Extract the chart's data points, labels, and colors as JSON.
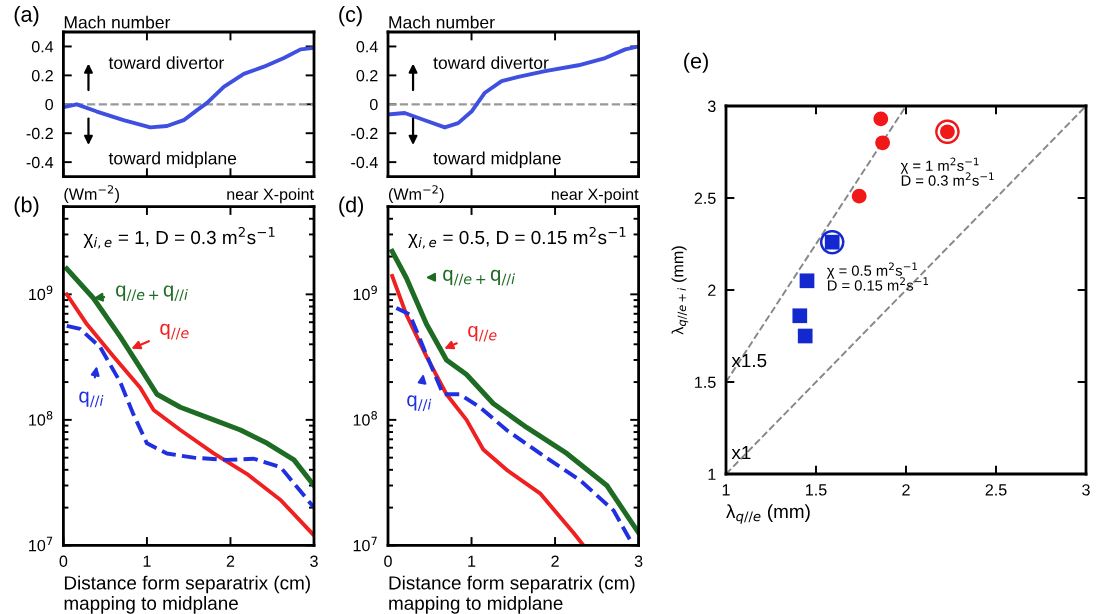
{
  "chart_data": [
    {
      "type": "line",
      "title": "(a)",
      "ylabel": "Mach number",
      "xlim": [
        0,
        3
      ],
      "xticks": [
        0,
        1,
        2,
        3
      ],
      "ylim": [
        -0.5,
        0.5
      ],
      "yticks": [
        0.4,
        0.2,
        0,
        -0.2,
        -0.4
      ],
      "tick_labels": "y",
      "grid": false,
      "annotations": [
        "toward divertor",
        "toward midplane"
      ],
      "ref_lines": [
        {
          "axis": "y",
          "value": 0,
          "color": "#999999",
          "line_style": "dashed"
        }
      ],
      "series": [
        {
          "color": "#3f4fe0",
          "x": [
            0,
            0.16,
            0.4,
            0.72,
            1.04,
            1.24,
            1.44,
            1.6,
            1.72,
            1.92,
            2.16,
            2.4,
            2.64,
            2.84,
            3.0
          ],
          "values": [
            -0.02,
            0.0,
            -0.05,
            -0.11,
            -0.16,
            -0.15,
            -0.11,
            -0.04,
            0.01,
            0.12,
            0.21,
            0.26,
            0.32,
            0.38,
            0.39
          ]
        }
      ]
    },
    {
      "type": "line",
      "title": "(b)",
      "xlabel": "Distance form separatrix (cm)\nmapping to midplane",
      "log": "y",
      "xlim": [
        0,
        3
      ],
      "xticks": [
        0,
        1,
        2,
        3
      ],
      "ylim": [
        10000000.0,
        5000000000.0
      ],
      "yticks": [
        {
          "value": 10000000.0,
          "label": "10$^{7}$"
        },
        {
          "value": 100000000.0,
          "label": "10$^{8}$"
        },
        {
          "value": 1000000000.0,
          "label": "10$^{9}$"
        }
      ],
      "grid": false,
      "legend": "left",
      "annotations": [
        "(Wm$^{−2}$)",
        "near X-point",
        "χ$_{i,e}$ = 1, D = 0.3 m$^{2}$s$^{−1}$"
      ],
      "series": [
        {
          "name": "q$_{//e+}$q$_{//i}$",
          "color": "#1e6b24",
          "line_style": "solid",
          "x": [
            0.04,
            0.36,
            0.68,
            0.92,
            1.12,
            1.4,
            1.8,
            2.12,
            2.44,
            2.76,
            3.0
          ],
          "values": [
            1600000000.0,
            930000000.0,
            460000000.0,
            260000000.0,
            160000000.0,
            126000000.0,
            100000000.0,
            83000000.0,
            65000000.0,
            48000000.0,
            30000000.0
          ]
        },
        {
          "name": "q$_{//e}$",
          "color": "#f02020",
          "line_style": "solid",
          "x": [
            0.04,
            0.28,
            0.6,
            0.92,
            1.08,
            1.4,
            1.8,
            2.2,
            2.6,
            3.0
          ],
          "values": [
            1000000000.0,
            580000000.0,
            320000000.0,
            180000000.0,
            120000000.0,
            83000000.0,
            54000000.0,
            37000000.0,
            23000000.0,
            12000000.0
          ]
        },
        {
          "name": "q$_{//i}$",
          "color": "#2030e0",
          "line_style": "dashed",
          "x": [
            0.04,
            0.2,
            0.44,
            0.68,
            0.84,
            1.0,
            1.24,
            1.56,
            1.96,
            2.28,
            2.6,
            3.0
          ],
          "values": [
            560000000.0,
            530000000.0,
            380000000.0,
            200000000.0,
            110000000.0,
            65000000.0,
            54000000.0,
            50000000.0,
            48000000.0,
            49000000.0,
            42000000.0,
            20000000.0
          ]
        }
      ]
    },
    {
      "type": "line",
      "title": "(c)",
      "ylabel": "Mach number",
      "xlim": [
        0,
        3
      ],
      "xticks": [
        0,
        1,
        2,
        3
      ],
      "ylim": [
        -0.5,
        0.5
      ],
      "yticks": [
        0.4,
        0.2,
        0,
        -0.2,
        -0.4
      ],
      "tick_labels": "y",
      "grid": false,
      "annotations": [
        "toward divertor",
        "toward midplane"
      ],
      "ref_lines": [
        {
          "axis": "y",
          "value": 0,
          "color": "#999999",
          "line_style": "dashed"
        }
      ],
      "series": [
        {
          "color": "#3f4fe0",
          "x": [
            0,
            0.2,
            0.44,
            0.68,
            0.84,
            1.0,
            1.16,
            1.36,
            1.56,
            1.88,
            2.28,
            2.6,
            2.84,
            3.0
          ],
          "values": [
            -0.07,
            -0.06,
            -0.11,
            -0.16,
            -0.13,
            -0.05,
            0.08,
            0.16,
            0.19,
            0.23,
            0.27,
            0.32,
            0.38,
            0.4
          ]
        }
      ]
    },
    {
      "type": "line",
      "title": "(d)",
      "xlabel": "Distance form separatrix (cm)\nmapping to midplane",
      "log": "y",
      "xlim": [
        0,
        3
      ],
      "xticks": [
        0,
        1,
        2,
        3
      ],
      "ylim": [
        10000000.0,
        5000000000.0
      ],
      "yticks": [
        {
          "value": 10000000.0,
          "label": "10$^{7}$"
        },
        {
          "value": 100000000.0,
          "label": "10$^{8}$"
        },
        {
          "value": 1000000000.0,
          "label": "10$^{9}$"
        }
      ],
      "grid": false,
      "legend": "left",
      "annotations": [
        "(Wm$^{−2}$)",
        "near X-point",
        "χ$_{i,e}$ = 0.5, D = 0.15 m$^{2}$s$^{−1}$"
      ],
      "series": [
        {
          "name": "q$_{//e+}$q$_{//i}$",
          "color": "#1e6b24",
          "line_style": "solid",
          "x": [
            0.05,
            0.22,
            0.46,
            0.7,
            0.94,
            1.26,
            1.66,
            2.14,
            2.62,
            3.0
          ],
          "values": [
            2200000000.0,
            1350000000.0,
            580000000.0,
            300000000.0,
            230000000.0,
            135000000.0,
            87000000.0,
            54000000.0,
            30000000.0,
            12600000.0
          ]
        },
        {
          "name": "q$_{//e}$",
          "color": "#f02020",
          "line_style": "solid",
          "x": [
            0.05,
            0.22,
            0.46,
            0.7,
            0.94,
            1.14,
            1.42,
            1.82,
            2.22,
            2.34
          ],
          "values": [
            1400000000.0,
            690000000.0,
            320000000.0,
            160000000.0,
            100000000.0,
            58000000.0,
            40000000.0,
            26000000.0,
            12600000.0,
            10000000.0
          ]
        },
        {
          "name": "q$_{//i}$",
          "color": "#2030e0",
          "line_style": "dashed",
          "x": [
            0.1,
            0.26,
            0.46,
            0.66,
            0.86,
            1.1,
            1.42,
            1.82,
            2.3,
            2.7,
            2.9
          ],
          "values": [
            780000000.0,
            690000000.0,
            330000000.0,
            160000000.0,
            160000000.0,
            126000000.0,
            83000000.0,
            54000000.0,
            33000000.0,
            19000000.0,
            11000000.0
          ]
        }
      ]
    },
    {
      "type": "scatter",
      "title": "(e)",
      "xlabel": "λ$_{q//e}$ (mm)",
      "ylabel": "λ$_{q//e+i}$ (mm)",
      "xlim": [
        1,
        3
      ],
      "xticks": [
        1,
        1.5,
        2,
        2.5,
        3
      ],
      "ylim": [
        1,
        3
      ],
      "yticks": [
        1,
        1.5,
        2,
        2.5,
        3
      ],
      "grid": false,
      "annotations": [
        "χ = 1 m$^{2}$s$^{−1}$\nD = 0.3 m$^{2}$s$^{−1}$",
        "χ = 0.5 m$^{2}$s$^{−1}$\nD = 0.15 m$^{2}$s$^{−1}$"
      ],
      "series": [
        {
          "type": "line",
          "name": "x1.5",
          "color": "#888888",
          "line_style": "dashed",
          "marker": "none",
          "x": [
            1,
            2
          ],
          "values": [
            1.5,
            3
          ]
        },
        {
          "type": "line",
          "name": "x1",
          "color": "#888888",
          "line_style": "dashed",
          "marker": "none",
          "x": [
            1,
            3
          ],
          "values": [
            1,
            3
          ]
        },
        {
          "type": "scatter",
          "color": "#f01818",
          "marker": "circle",
          "x": [
            1.86,
            1.87,
            1.74,
            2.23
          ],
          "values": [
            2.93,
            2.8,
            2.51,
            2.86
          ]
        },
        {
          "type": "scatter",
          "color": "#1428d0",
          "marker": "square",
          "x": [
            1.59,
            1.45,
            1.41,
            1.44
          ],
          "values": [
            2.26,
            2.05,
            1.86,
            1.75
          ]
        }
      ]
    }
  ]
}
